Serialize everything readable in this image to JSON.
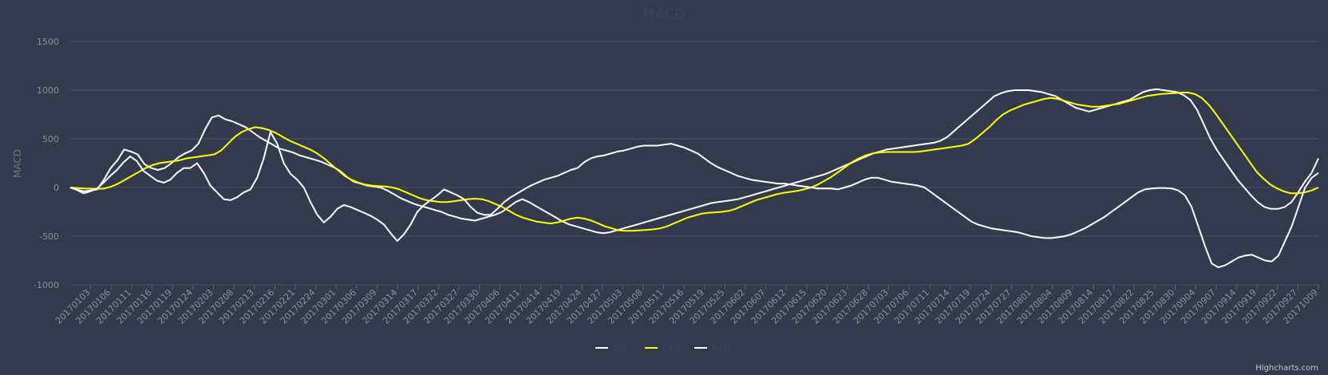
{
  "chart_data": {
    "type": "line",
    "title": "MACD",
    "ylabel": "MACD",
    "ylim": [
      -1000,
      1500
    ],
    "yticks": [
      -1000,
      -500,
      0,
      500,
      1000,
      1500
    ],
    "grid": true,
    "legend_position": "bottom-center",
    "xtick_labels": [
      "20170103",
      "20170106",
      "20170111",
      "20170116",
      "20170119",
      "20170124",
      "20170203",
      "20170208",
      "20170213",
      "20170216",
      "20170221",
      "20170224",
      "20170301",
      "20170306",
      "20170309",
      "20170314",
      "20170317",
      "20170322",
      "20170327",
      "20170330",
      "20170406",
      "20170411",
      "20170414",
      "20170419",
      "20170424",
      "20170427",
      "20170503",
      "20170508",
      "20170511",
      "20170516",
      "20170519",
      "20170525",
      "20170602",
      "20170607",
      "20170612",
      "20170615",
      "20170620",
      "20170623",
      "20170628",
      "20170703",
      "20170706",
      "20170711",
      "20170714",
      "20170719",
      "20170724",
      "20170727",
      "20170801",
      "20170804",
      "20170809",
      "20170814",
      "20170817",
      "20170822",
      "20170825",
      "20170830",
      "20170904",
      "20170907",
      "20170914",
      "20170919",
      "20170922",
      "20170927",
      "20171009"
    ],
    "series": [
      {
        "name": "DIF",
        "color": "#ffffff",
        "values": [
          0,
          -20,
          -40,
          -30,
          -20,
          80,
          200,
          280,
          390,
          370,
          340,
          240,
          200,
          180,
          200,
          250,
          310,
          350,
          380,
          450,
          600,
          720,
          740,
          700,
          680,
          650,
          620,
          570,
          520,
          480,
          440,
          400,
          380,
          360,
          330,
          310,
          290,
          270,
          240,
          210,
          170,
          110,
          60,
          40,
          20,
          10,
          0,
          -30,
          -70,
          -110,
          -140,
          -170,
          -190,
          -210,
          -230,
          -250,
          -280,
          -300,
          -320,
          -330,
          -340,
          -320,
          -300,
          -280,
          -250,
          -200,
          -150,
          -120,
          -150,
          -190,
          -230,
          -270,
          -310,
          -350,
          -380,
          -400,
          -420,
          -440,
          -460,
          -470,
          -460,
          -440,
          -420,
          -400,
          -380,
          -360,
          -340,
          -320,
          -300,
          -280,
          -260,
          -240,
          -220,
          -200,
          -180,
          -160,
          -150,
          -140,
          -130,
          -120,
          -100,
          -80,
          -60,
          -40,
          -20,
          0,
          20,
          40,
          60,
          80,
          100,
          120,
          140,
          170,
          200,
          230,
          260,
          290,
          320,
          350,
          370,
          390,
          400,
          410,
          420,
          430,
          440,
          450,
          460,
          480,
          520,
          580,
          640,
          700,
          760,
          820,
          880,
          940,
          970,
          990,
          1000,
          1000,
          1000,
          990,
          980,
          960,
          940,
          900,
          860,
          820,
          800,
          780,
          800,
          820,
          840,
          860,
          880,
          900,
          940,
          980,
          1000,
          1010,
          1000,
          990,
          980,
          950,
          900,
          800,
          650,
          500,
          380,
          280,
          180,
          80,
          0,
          -80,
          -150,
          -200,
          -220,
          -220,
          -200,
          -150,
          -50,
          60,
          150,
          300
        ]
      },
      {
        "name": "DEA",
        "color": "#ffff00",
        "values": [
          0,
          -5,
          -10,
          -12,
          -15,
          -10,
          10,
          40,
          80,
          120,
          160,
          200,
          230,
          250,
          260,
          270,
          280,
          300,
          310,
          320,
          330,
          340,
          380,
          450,
          520,
          570,
          600,
          620,
          610,
          590,
          560,
          520,
          480,
          450,
          420,
          390,
          350,
          300,
          240,
          180,
          120,
          80,
          50,
          30,
          20,
          15,
          10,
          0,
          -20,
          -50,
          -80,
          -110,
          -130,
          -140,
          -150,
          -150,
          -140,
          -130,
          -120,
          -115,
          -120,
          -140,
          -170,
          -200,
          -240,
          -280,
          -310,
          -330,
          -350,
          -360,
          -370,
          -360,
          -340,
          -320,
          -310,
          -320,
          -340,
          -370,
          -400,
          -420,
          -440,
          -445,
          -445,
          -440,
          -435,
          -430,
          -420,
          -400,
          -370,
          -340,
          -310,
          -290,
          -270,
          -260,
          -255,
          -250,
          -240,
          -220,
          -190,
          -160,
          -130,
          -110,
          -90,
          -70,
          -55,
          -45,
          -35,
          -20,
          0,
          30,
          70,
          110,
          160,
          210,
          260,
          300,
          330,
          350,
          360,
          365,
          365,
          365,
          365,
          365,
          370,
          380,
          390,
          400,
          410,
          420,
          430,
          450,
          500,
          560,
          620,
          690,
          750,
          790,
          820,
          850,
          870,
          890,
          910,
          920,
          910,
          890,
          870,
          850,
          840,
          830,
          830,
          840,
          850,
          860,
          880,
          900,
          920,
          940,
          950,
          960,
          965,
          970,
          975,
          975,
          960,
          920,
          850,
          760,
          660,
          560,
          460,
          360,
          260,
          160,
          90,
          30,
          -10,
          -40,
          -60,
          -60,
          -50,
          -30,
          0
        ]
      },
      {
        "name": "BAR",
        "color": "#ffffff",
        "values": [
          0,
          -25,
          -60,
          -40,
          -10,
          50,
          120,
          180,
          260,
          320,
          270,
          170,
          120,
          70,
          50,
          80,
          150,
          200,
          200,
          250,
          150,
          20,
          -50,
          -120,
          -130,
          -100,
          -50,
          -20,
          100,
          300,
          570,
          450,
          250,
          140,
          80,
          0,
          -150,
          -280,
          -360,
          -300,
          -220,
          -180,
          -200,
          -230,
          -260,
          -290,
          -330,
          -380,
          -470,
          -550,
          -480,
          -380,
          -250,
          -180,
          -130,
          -80,
          -20,
          -50,
          -80,
          -120,
          -200,
          -260,
          -280,
          -280,
          -220,
          -150,
          -100,
          -60,
          -20,
          20,
          50,
          80,
          100,
          120,
          150,
          180,
          200,
          260,
          300,
          320,
          330,
          350,
          370,
          380,
          400,
          420,
          430,
          430,
          430,
          440,
          450,
          430,
          410,
          380,
          350,
          300,
          250,
          210,
          180,
          150,
          120,
          100,
          80,
          70,
          60,
          50,
          40,
          40,
          30,
          20,
          10,
          0,
          -10,
          -10,
          -10,
          -20,
          0,
          20,
          50,
          80,
          100,
          100,
          80,
          60,
          50,
          40,
          30,
          20,
          0,
          -50,
          -100,
          -150,
          -200,
          -250,
          -300,
          -350,
          -380,
          -400,
          -420,
          -430,
          -440,
          -450,
          -460,
          -480,
          -500,
          -510,
          -520,
          -520,
          -510,
          -500,
          -480,
          -450,
          -420,
          -380,
          -340,
          -300,
          -250,
          -200,
          -150,
          -100,
          -50,
          -20,
          -10,
          -5,
          -5,
          -10,
          -30,
          -80,
          -200,
          -400,
          -600,
          -780,
          -820,
          -800,
          -760,
          -720,
          -700,
          -690,
          -720,
          -750,
          -760,
          -700,
          -550,
          -400,
          -200,
          0,
          100,
          150
        ]
      }
    ]
  },
  "credits": "Highcharts.com"
}
